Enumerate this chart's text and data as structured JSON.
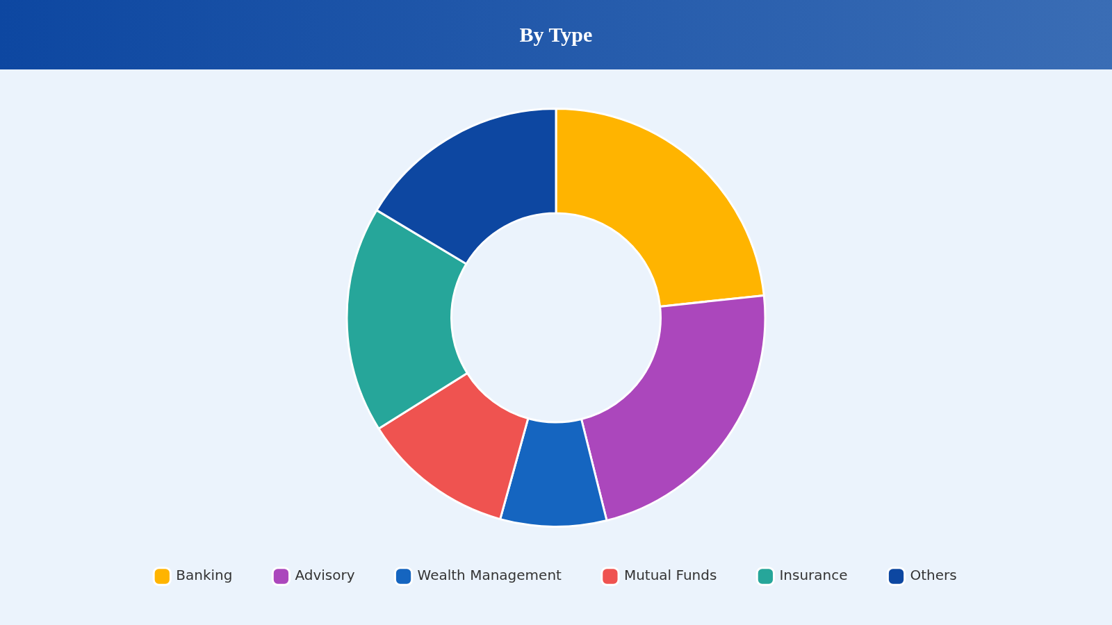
{
  "chart_data": {
    "type": "donut",
    "title": "By Type",
    "categories": [
      "Banking",
      "Advisory",
      "Wealth Management",
      "Mutual Funds",
      "Insurance",
      "Others"
    ],
    "values": [
      23.3,
      22.8,
      8.2,
      11.8,
      17.5,
      16.4
    ],
    "colors": [
      "#ffb400",
      "#ab47bc",
      "#1565c0",
      "#ef5350",
      "#26a69a",
      "#0d47a1"
    ],
    "legend": "bottom"
  }
}
